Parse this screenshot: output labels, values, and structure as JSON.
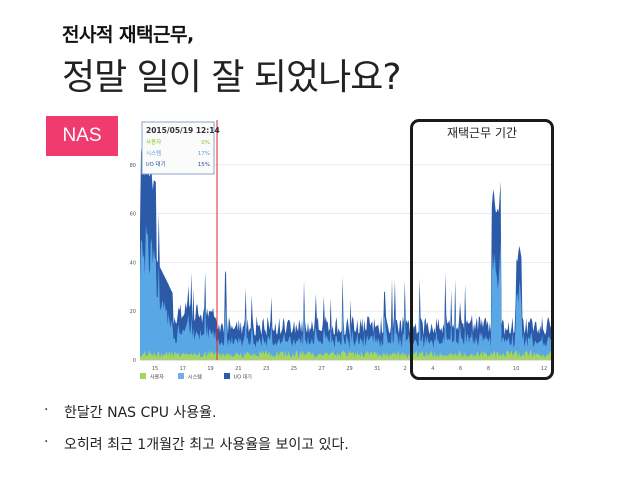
{
  "slide": {
    "title": "전사적 재택근무,",
    "subtitle": "정말 일이 잘 되었나요?",
    "badge": "NAS",
    "highlight_label": "재택근무 기간",
    "bullets": [
      "한달간 NAS CPU 사용율.",
      "오히려 최근 1개월간 최고 사용율을 보이고 있다."
    ]
  },
  "chart_data": {
    "type": "area",
    "ylim": [
      0,
      100
    ],
    "yticks": [
      "0",
      "20",
      "40",
      "60",
      "80"
    ],
    "xticks": [
      "15",
      "17",
      "19",
      "21",
      "23",
      "25",
      "27",
      "29",
      "31",
      "2",
      "4",
      "6",
      "8",
      "10",
      "12"
    ],
    "tooltip": {
      "date": "2015/05/19 12:14",
      "rows": [
        {
          "label": "사용자",
          "value": "0%",
          "color": "#7fc31c"
        },
        {
          "label": "시스템",
          "value": "17%",
          "color": "#5b9bd5"
        },
        {
          "label": "I/O 대기",
          "value": "15%",
          "color": "#1f4e9a"
        }
      ]
    },
    "legend": [
      {
        "label": "사용자",
        "color": "#a4d65e"
      },
      {
        "label": "시스템",
        "color": "#6fb0e8"
      },
      {
        "label": "I/O 대기",
        "color": "#2b5aa8"
      }
    ],
    "colors": {
      "user": "#a4d65e",
      "system": "#5aa7e6",
      "iowait": "#2b5aa8",
      "marker": "#e0242c"
    }
  }
}
